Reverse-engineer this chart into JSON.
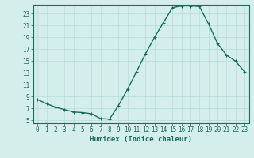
{
  "x": [
    0,
    1,
    2,
    3,
    4,
    5,
    6,
    7,
    8,
    9,
    10,
    11,
    12,
    13,
    14,
    15,
    16,
    17,
    18,
    19,
    20,
    21,
    22,
    23
  ],
  "y": [
    8.5,
    7.8,
    7.2,
    6.8,
    6.4,
    6.3,
    6.1,
    5.3,
    5.2,
    7.5,
    10.2,
    13.2,
    16.2,
    19.0,
    21.5,
    24.0,
    24.3,
    24.3,
    24.2,
    21.3,
    18.0,
    16.0,
    15.0,
    13.2
  ],
  "line_color": "#1a6b5e",
  "marker": "+",
  "marker_size": 3,
  "marker_linewidth": 0.8,
  "bg_color": "#d4eeeb",
  "grid_color": "#b8ddd9",
  "xlabel": "Humidex (Indice chaleur)",
  "xlim": [
    -0.5,
    23.5
  ],
  "ylim": [
    4.5,
    24.5
  ],
  "yticks": [
    5,
    7,
    9,
    11,
    13,
    15,
    17,
    19,
    21,
    23
  ],
  "xticks": [
    0,
    1,
    2,
    3,
    4,
    5,
    6,
    7,
    8,
    9,
    10,
    11,
    12,
    13,
    14,
    15,
    16,
    17,
    18,
    19,
    20,
    21,
    22,
    23
  ],
  "axis_color": "#1a6b5e",
  "tick_color": "#1a6b5e",
  "linewidth": 1.0,
  "xlabel_fontsize": 6.5,
  "tick_fontsize": 5.5
}
